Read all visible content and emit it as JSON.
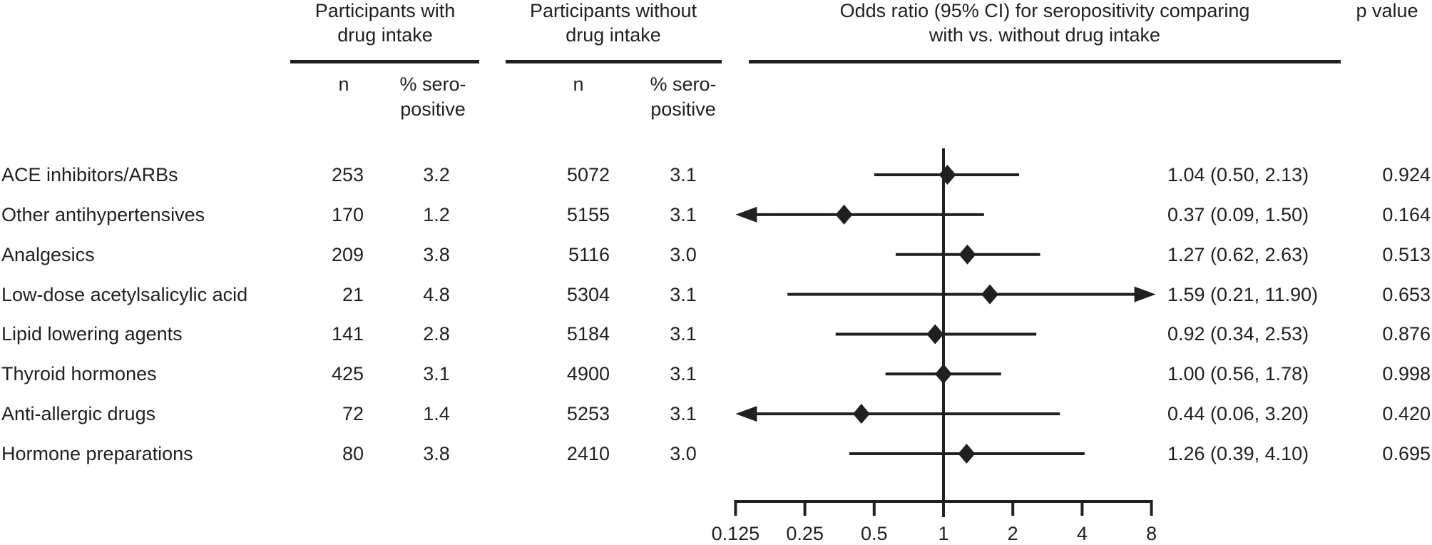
{
  "colors": {
    "ink": "#231f20",
    "background": "#ffffff"
  },
  "table": {
    "group_with_header": [
      "Participants with",
      "drug intake"
    ],
    "group_without_header": [
      "Participants without",
      "drug intake"
    ],
    "forest_header": [
      "Odds ratio (95% CI) for seropositivity comparing",
      "with vs. without drug intake"
    ],
    "p_value_header": "p value",
    "sub_headers": {
      "n": "n",
      "pct": "% sero-positive"
    },
    "rows": [
      {
        "label": "ACE inhibitors/ARBs",
        "n_with": "253",
        "pct_with": "3.2",
        "n_without": "5072",
        "pct_without": "3.1",
        "or_ci": "1.04 (0.50, 2.13)",
        "p": "0.924"
      },
      {
        "label": "Other antihypertensives",
        "n_with": "170",
        "pct_with": "1.2",
        "n_without": "5155",
        "pct_without": "3.1",
        "or_ci": "0.37 (0.09, 1.50)",
        "p": "0.164"
      },
      {
        "label": "Analgesics",
        "n_with": "209",
        "pct_with": "3.8",
        "n_without": "5116",
        "pct_without": "3.0",
        "or_ci": "1.27 (0.62, 2.63)",
        "p": "0.513"
      },
      {
        "label": "Low-dose acetylsalicylic acid",
        "n_with": "21",
        "pct_with": "4.8",
        "n_without": "5304",
        "pct_without": "3.1",
        "or_ci": "1.59 (0.21, 11.90)",
        "p": "0.653"
      },
      {
        "label": "Lipid lowering agents",
        "n_with": "141",
        "pct_with": "2.8",
        "n_without": "5184",
        "pct_without": "3.1",
        "or_ci": "0.92 (0.34, 2.53)",
        "p": "0.876"
      },
      {
        "label": "Thyroid hormones",
        "n_with": "425",
        "pct_with": "3.1",
        "n_without": "4900",
        "pct_without": "3.1",
        "or_ci": "1.00 (0.56, 1.78)",
        "p": "0.998"
      },
      {
        "label": "Anti-allergic drugs",
        "n_with": "72",
        "pct_with": "1.4",
        "n_without": "5253",
        "pct_without": "3.1",
        "or_ci": "0.44 (0.06, 3.20)",
        "p": "0.420"
      },
      {
        "label": "Hormone preparations",
        "n_with": "80",
        "pct_with": "3.8",
        "n_without": "2410",
        "pct_without": "3.0",
        "or_ci": "1.26 (0.39, 4.10)",
        "p": "0.695"
      }
    ]
  },
  "chart_data": {
    "type": "scatter",
    "subtype": "forest-plot",
    "title": "Odds ratio (95% CI) for seropositivity comparing with vs. without drug intake",
    "x_scale": "log2",
    "x_ticks": [
      0.125,
      0.25,
      0.5,
      1,
      2,
      4,
      8
    ],
    "x_range": [
      0.125,
      8
    ],
    "reference_line": 1,
    "grid": false,
    "legend": false,
    "categories": [
      "ACE inhibitors/ARBs",
      "Other antihypertensives",
      "Analgesics",
      "Low-dose acetylsalicylic acid",
      "Lipid lowering agents",
      "Thyroid hormones",
      "Anti-allergic drugs",
      "Hormone preparations"
    ],
    "series": [
      {
        "name": "Odds ratio (95% CI), with vs. without drug intake",
        "odds_ratio": [
          1.04,
          0.37,
          1.27,
          1.59,
          0.92,
          1.0,
          0.44,
          1.26
        ],
        "ci_low": [
          0.5,
          0.09,
          0.62,
          0.21,
          0.34,
          0.56,
          0.06,
          0.39
        ],
        "ci_high": [
          2.13,
          1.5,
          2.63,
          11.9,
          2.53,
          1.78,
          3.2,
          4.1
        ],
        "p_values": [
          0.924,
          0.164,
          0.513,
          0.653,
          0.876,
          0.998,
          0.42,
          0.695
        ]
      }
    ]
  }
}
